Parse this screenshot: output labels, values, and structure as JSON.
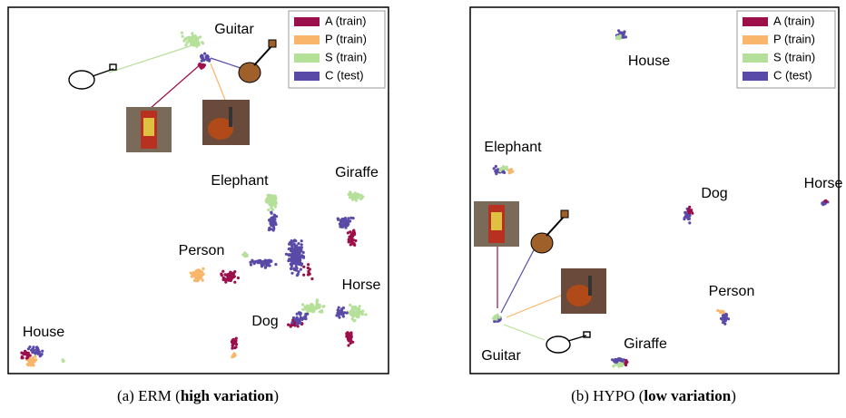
{
  "legend": [
    {
      "label": "A (train)",
      "color": "#9b0f4a"
    },
    {
      "label": "P (train)",
      "color": "#f9b56a"
    },
    {
      "label": "S (train)",
      "color": "#b5e09a"
    },
    {
      "label": "C (test)",
      "color": "#5a4aa8"
    }
  ],
  "panels": [
    {
      "labels": [
        "Guitar",
        "Elephant",
        "Giraffe",
        "Person",
        "Horse",
        "Dog",
        "House"
      ],
      "caption": {
        "prefix": "(a) ERM (",
        "bold": "high variation",
        "suffix": ")"
      }
    },
    {
      "labels": [
        "House",
        "Elephant",
        "Dog",
        "Horse",
        "Person",
        "Giraffe",
        "Guitar"
      ],
      "caption": {
        "prefix": "(b) HYPO (",
        "bold": "low variation",
        "suffix": ")"
      }
    }
  ]
}
